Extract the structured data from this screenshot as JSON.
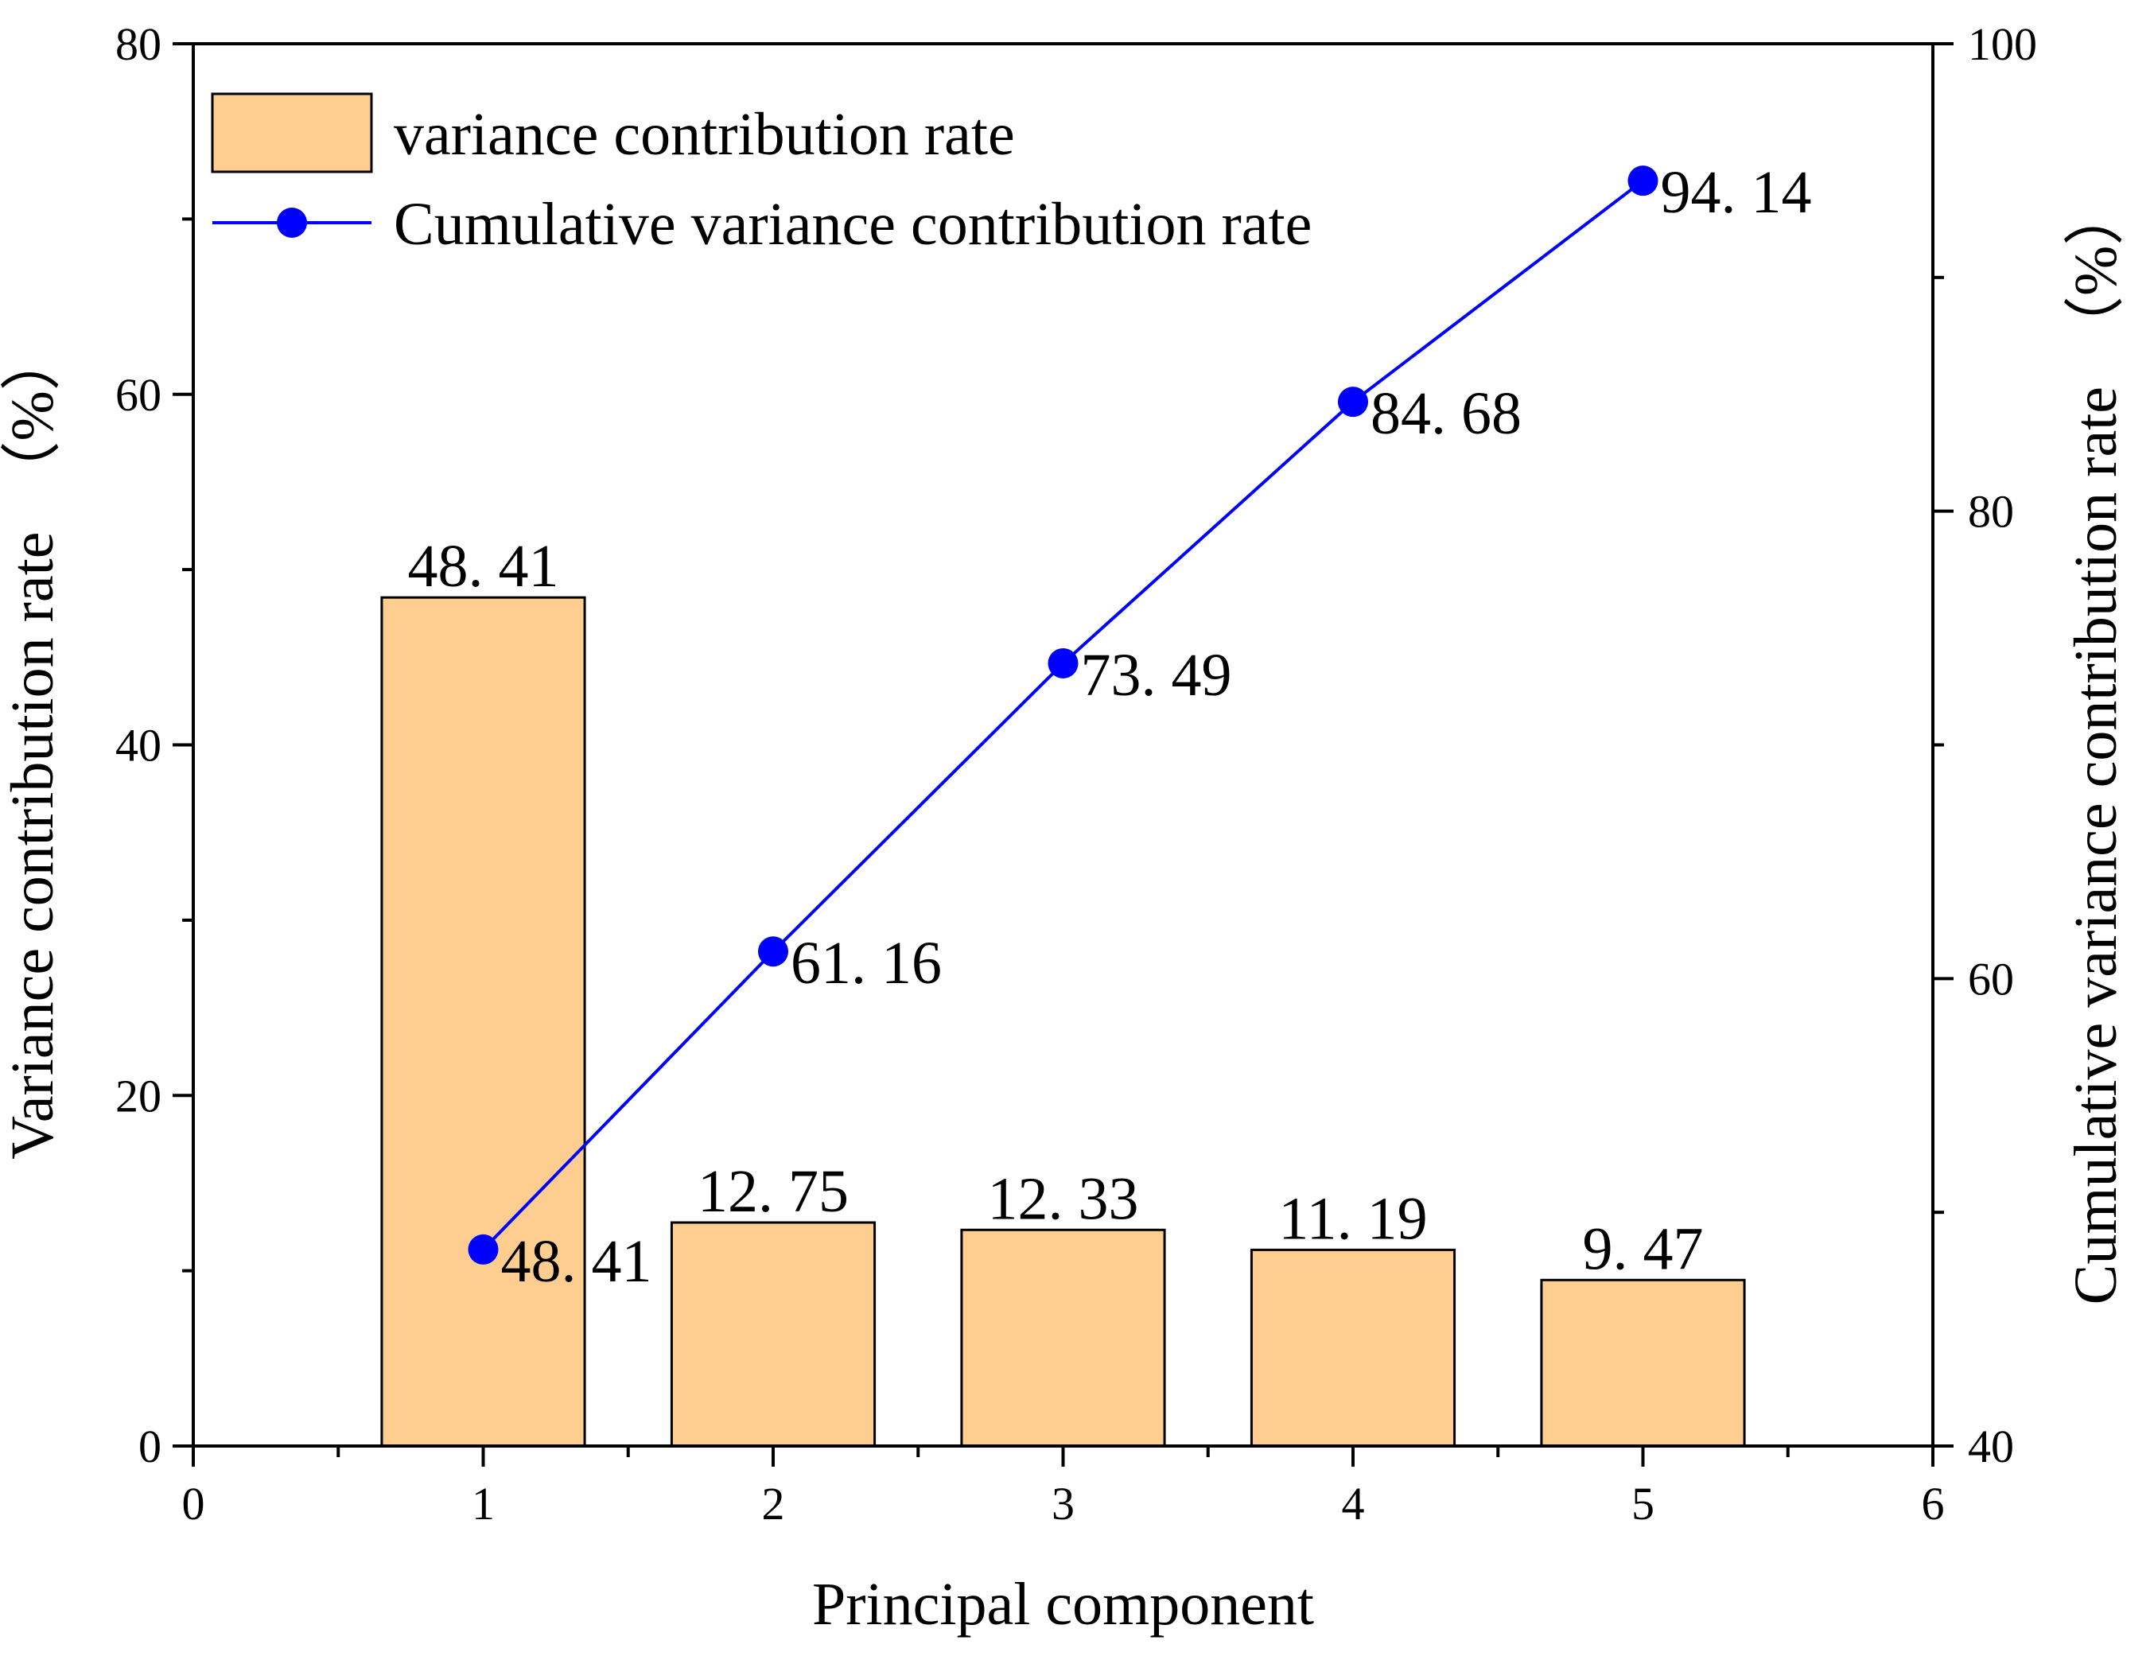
{
  "chart_data": {
    "type": "bar+line",
    "x": [
      1,
      2,
      3,
      4,
      5
    ],
    "xlabel": "Principal component",
    "xlim": [
      0,
      6
    ],
    "xticks": [
      0,
      1,
      2,
      3,
      4,
      5,
      6
    ],
    "ylabel_left": "Variance contribution rate　（%）",
    "ylim_left": [
      0,
      80
    ],
    "yticks_left": [
      0,
      20,
      40,
      60,
      80
    ],
    "ylabel_right": "Cumulative variance contribution rate　（%）",
    "ylim_right": [
      40,
      100
    ],
    "yticks_right": [
      40,
      60,
      80,
      100
    ],
    "series": [
      {
        "name": "variance contribution rate",
        "type": "bar",
        "axis": "left",
        "values": [
          48.41,
          12.75,
          12.33,
          11.19,
          9.47
        ],
        "labels": [
          "48. 41",
          "12. 75",
          "12. 33",
          "11. 19",
          "9. 47"
        ],
        "color": "#FECE91"
      },
      {
        "name": "Cumulative variance contribution rate",
        "type": "line",
        "axis": "right",
        "values": [
          48.41,
          61.16,
          73.49,
          84.68,
          94.14
        ],
        "labels": [
          "48. 41",
          "61. 16",
          "73. 49",
          "84. 68",
          "94. 14"
        ],
        "color": "#0000FF"
      }
    ],
    "legend": "top-left",
    "grid": false
  }
}
